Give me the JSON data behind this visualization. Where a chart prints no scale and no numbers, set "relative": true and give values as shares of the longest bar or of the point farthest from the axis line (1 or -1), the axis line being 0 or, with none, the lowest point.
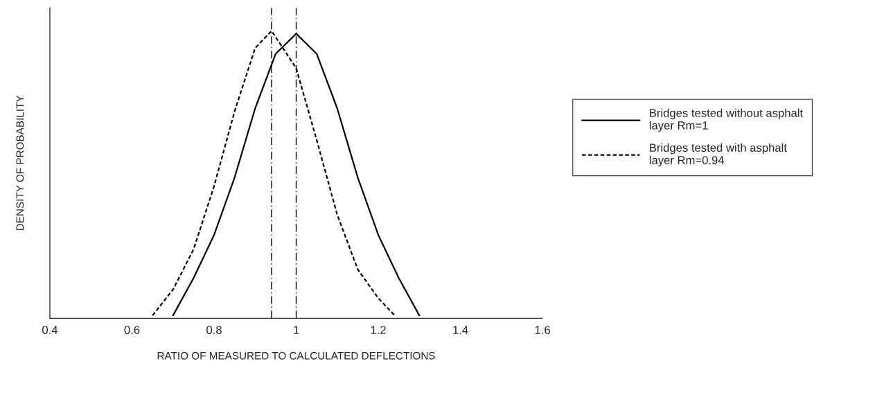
{
  "chart_data": {
    "type": "line",
    "relative": true,
    "xlabel": "RATIO OF MEASURED TO CALCULATED DEFLECTIONS",
    "ylabel": "DENSITY OF PROBABILITY",
    "xlim": [
      0.4,
      1.6
    ],
    "xticks": [
      0.4,
      0.6,
      0.8,
      1,
      1.2,
      1.4,
      1.6
    ],
    "tick_labels": "x",
    "legend": "right",
    "grid": false,
    "marker": "none",
    "series": [
      {
        "name": "Bridges tested without asphalt layer Rm=1",
        "color": "#000000",
        "line_style": "solid",
        "x": [
          0.7,
          0.75,
          0.8,
          0.85,
          0.9,
          0.95,
          1.0,
          1.05,
          1.1,
          1.15,
          1.2,
          1.25,
          1.3
        ],
        "values": [
          0.01,
          0.14,
          0.29,
          0.49,
          0.73,
          0.92,
          0.99,
          0.92,
          0.73,
          0.49,
          0.29,
          0.14,
          0.01
        ]
      },
      {
        "name": "Bridges tested with asphalt layer Rm=0.94",
        "color": "#000000",
        "line_style": "dashed",
        "x": [
          0.65,
          0.7,
          0.75,
          0.8,
          0.85,
          0.9,
          0.94,
          1.0,
          1.05,
          1.1,
          1.15,
          1.2,
          1.24
        ],
        "values": [
          0.01,
          0.1,
          0.24,
          0.46,
          0.72,
          0.94,
          1.0,
          0.87,
          0.62,
          0.36,
          0.17,
          0.07,
          0.01
        ]
      }
    ],
    "ref_lines": [
      {
        "axis": "x",
        "value": 0.94,
        "color": "#000000",
        "line_style": "dashdot"
      },
      {
        "axis": "x",
        "value": 1.0,
        "color": "#000000",
        "line_style": "dashdot"
      }
    ]
  }
}
